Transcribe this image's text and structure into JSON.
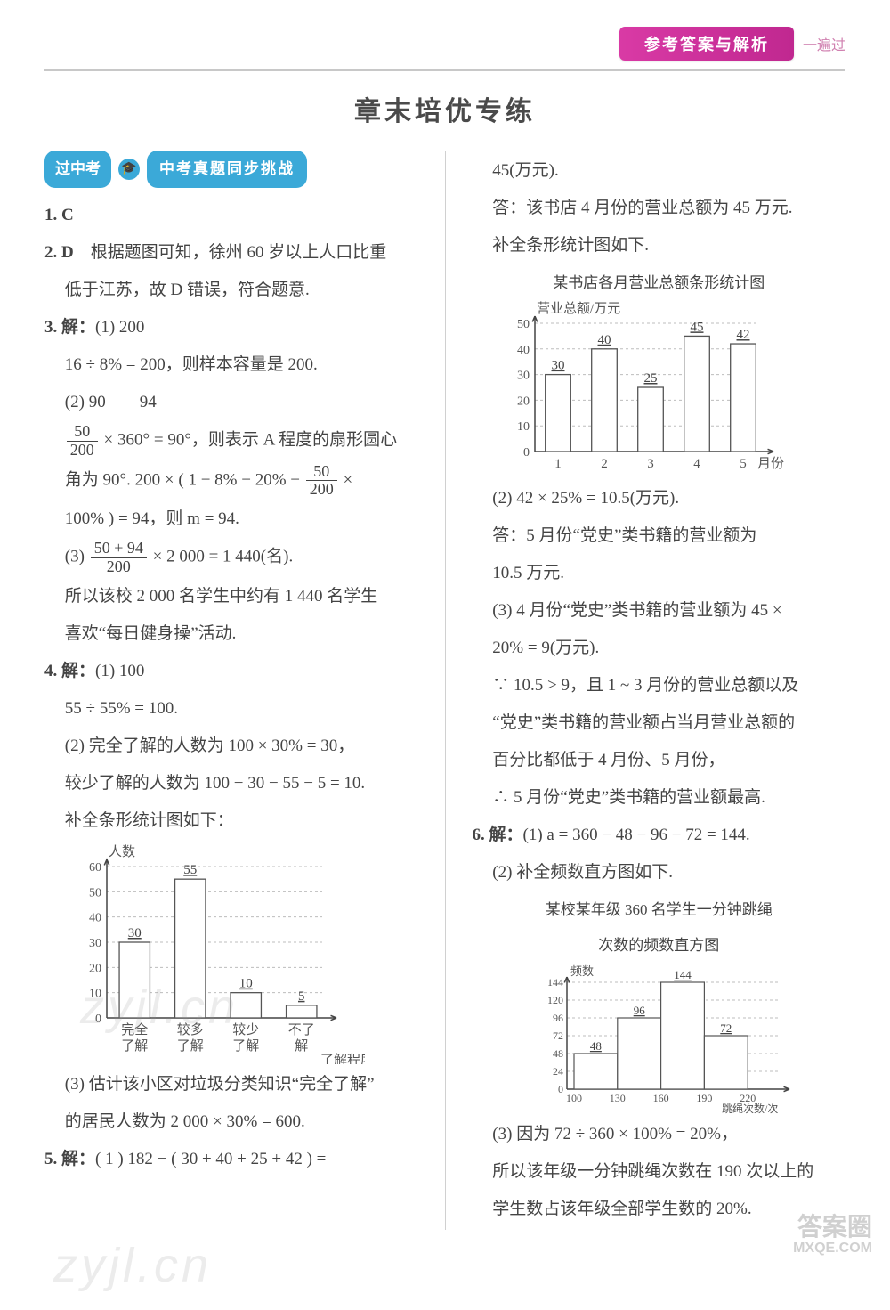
{
  "header": {
    "pill": "参考答案与解析",
    "side": "一遍过"
  },
  "title": "章末培优专练",
  "badge": {
    "left": "过中考",
    "right": "中考真题同步挑战"
  },
  "left": {
    "q1": "1. C",
    "q2_lead": "2. D",
    "q2_body": "　根据题图可知，徐州 60 岁以上人口比重",
    "q2_body2": "低于江苏，故 D 错误，符合题意.",
    "q3_lead": "3. 解：",
    "q3_1": "(1) 200",
    "q3_1b": "16 ÷ 8% = 200，则样本容量是 200.",
    "q3_2": "(2) 90　　94",
    "q3_2b_prefix": "",
    "q3_2b_after": " × 360° = 90°，则表示 A 程度的扇形圆心",
    "q3_2c_prefix": "角为 90°. 200 × ( 1 − 8% − 20% − ",
    "q3_2c_after": " ×",
    "q3_2d": "100% ) = 94，则 m = 94.",
    "q3_3_prefix": "(3) ",
    "q3_3_after": " × 2 000 = 1 440(名).",
    "q3_3b": "所以该校 2 000 名学生中约有 1 440 名学生",
    "q3_3c": "喜欢“每日健身操”活动.",
    "q4_lead": "4. 解：",
    "q4_1": "(1) 100",
    "q4_1b": "55 ÷ 55% = 100.",
    "q4_2a": "(2) 完全了解的人数为 100 × 30% = 30，",
    "q4_2b": "较少了解的人数为 100 − 30 − 55 − 5 = 10.",
    "q4_2c": "补全条形统计图如下：",
    "q4_3a": "(3) 估计该小区对垃圾分类知识“完全了解”",
    "q4_3b": "的居民人数为 2 000 × 30% = 600.",
    "q5_lead": "5. 解：",
    "q5_body": "( 1 ) 182 − ( 30 + 40 + 25 + 42 ) ="
  },
  "right": {
    "r1": "45(万元).",
    "r2": "答：该书店 4 月份的营业总额为 45 万元.",
    "r3": "补全条形统计图如下.",
    "chart1_title": "某书店各月营业总额条形统计图",
    "r4": "(2) 42 × 25% = 10.5(万元).",
    "r5a": "答：5 月份“党史”类书籍的营业额为",
    "r5b": "10.5 万元.",
    "r6a": "(3) 4 月份“党史”类书籍的营业额为 45 ×",
    "r6b": "20% = 9(万元).",
    "r7a": "∵ 10.5 > 9，且 1 ~ 3 月份的营业总额以及",
    "r7b": "“党史”类书籍的营业额占当月营业总额的",
    "r7c": "百分比都低于 4 月份、5 月份，",
    "r8": "∴ 5 月份“党史”类书籍的营业额最高.",
    "q6_lead": "6. 解：",
    "q6_1": "(1) a = 360 − 48 − 96 − 72 = 144.",
    "q6_2": "(2) 补全频数直方图如下.",
    "chart2_title1": "某校某年级 360 名学生一分钟跳绳",
    "chart2_title2": "次数的频数直方图",
    "q6_3a": "(3) 因为 72 ÷ 360 × 100% = 20%，",
    "q6_3b": "所以该年级一分钟跳绳次数在 190 次以上的",
    "q6_3c": "学生数占该年级全部学生数的 20%."
  },
  "frac": {
    "f50_200_n": "50",
    "f50_200_d": "200",
    "f5094_n": "50 + 94",
    "f5094_d": "200"
  },
  "chart_left": {
    "ylabel": "人数",
    "xlabel": "了解程度",
    "ymax": 60,
    "ytick_step": 10,
    "categories": [
      "完全\n了解",
      "较多\n了解",
      "较少\n了解",
      "不了\n解"
    ],
    "values": [
      30,
      55,
      10,
      5
    ],
    "value_labels": [
      "30",
      "55",
      "10",
      "5"
    ],
    "bar_color": "#ffffff",
    "bar_stroke": "#555555",
    "axis_color": "#444444",
    "grid_color": "#bdbdbd",
    "grid_dash": "3,3"
  },
  "chart_right1": {
    "ylabel": "营业总额/万元",
    "xlabel": "月份",
    "ymax": 50,
    "ytick_step": 10,
    "categories": [
      "1",
      "2",
      "3",
      "4",
      "5"
    ],
    "values": [
      30,
      40,
      25,
      45,
      42
    ],
    "value_labels": [
      "30",
      "40",
      "25",
      "45",
      "42"
    ],
    "bar_color": "#ffffff",
    "bar_stroke": "#555555",
    "axis_color": "#444444",
    "grid_color": "#bdbdbd",
    "grid_dash": "3,3"
  },
  "chart_right2": {
    "ylabel": "频数",
    "xlabel": "跳绳次数/次",
    "yticks": [
      0,
      24,
      48,
      72,
      96,
      120,
      144
    ],
    "xticks": [
      "100",
      "130",
      "160",
      "190",
      "220"
    ],
    "values": [
      48,
      96,
      144,
      72
    ],
    "value_labels": [
      "48",
      "96",
      "144",
      "72"
    ],
    "bar_color": "#ffffff",
    "bar_stroke": "#555555",
    "axis_color": "#444444",
    "grid_color": "#bdbdbd",
    "grid_dash": "3,3"
  },
  "watermark": {
    "w1": "zyjl.cn",
    "w2": "zyjl.cn",
    "logo1": "答案圈",
    "logo2": "MXQE.COM"
  }
}
